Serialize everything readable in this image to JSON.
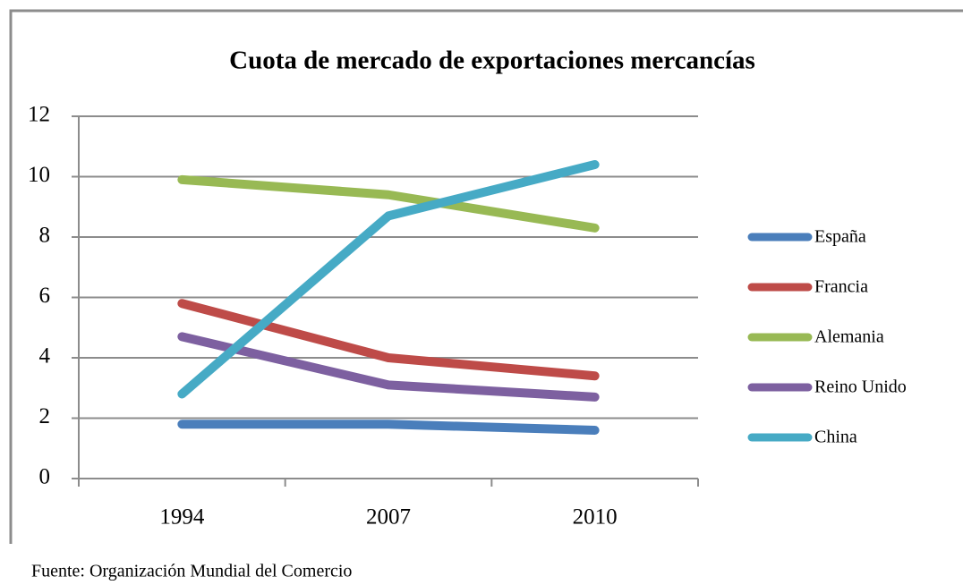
{
  "chart_data": {
    "type": "line",
    "title": "Cuota de mercado de exportaciones mercancías",
    "categories": [
      "1994",
      "2007",
      "2010"
    ],
    "series": [
      {
        "name": "España",
        "color": "#4a7ebb",
        "values": [
          1.8,
          1.8,
          1.6
        ]
      },
      {
        "name": "Francia",
        "color": "#be4b48",
        "values": [
          5.8,
          4.0,
          3.4
        ]
      },
      {
        "name": "Alemania",
        "color": "#98b954",
        "values": [
          9.9,
          9.4,
          8.3
        ]
      },
      {
        "name": "Reino Unido",
        "color": "#7d60a0",
        "values": [
          4.7,
          3.1,
          2.7
        ]
      },
      {
        "name": "China",
        "color": "#46aac5",
        "values": [
          2.8,
          8.7,
          10.4
        ]
      }
    ],
    "ylim": [
      0,
      12
    ],
    "yticks": [
      0,
      2,
      4,
      6,
      8,
      10,
      12
    ],
    "grid": true,
    "legend": "right",
    "source": "Fuente: Organización Mundial del Comercio"
  }
}
